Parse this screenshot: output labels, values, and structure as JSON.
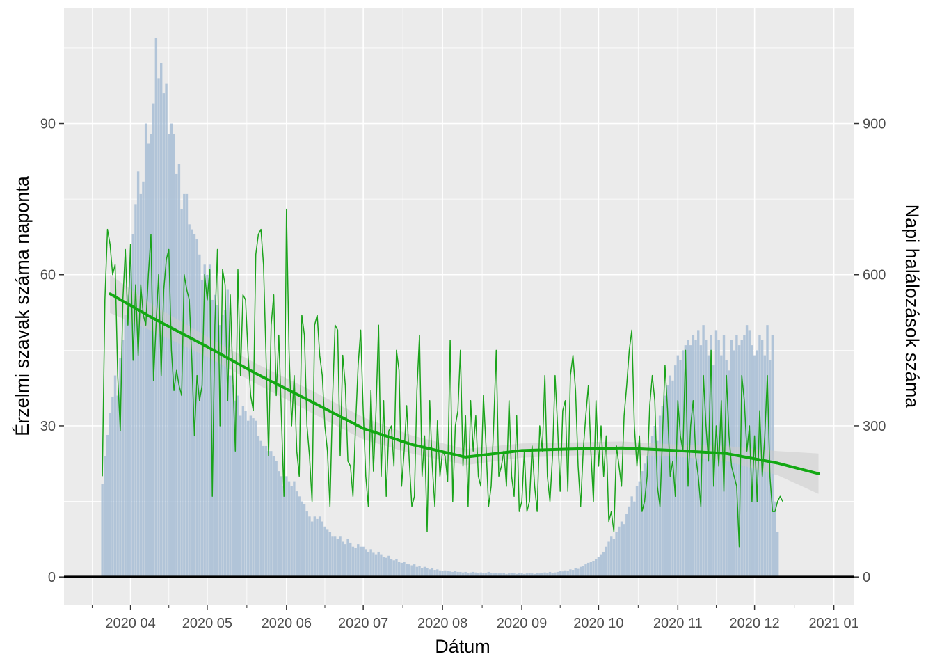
{
  "chart_data": {
    "type": "bar+line",
    "xlabel": "Dátum",
    "ylabel_left": "Érzelmi szavak száma naponta",
    "ylabel_right": "Napi halálozások száma",
    "x_tick_labels": [
      "2020 04",
      "2020 05",
      "2020 06",
      "2020 07",
      "2020 08",
      "2020 09",
      "2020 10",
      "2020 11",
      "2020 12",
      "2021 01"
    ],
    "x_tick_dates": [
      "2020-04-01",
      "2020-05-01",
      "2020-06-01",
      "2020-07-01",
      "2020-08-01",
      "2020-09-01",
      "2020-10-01",
      "2020-11-01",
      "2020-12-01",
      "2021-01-01"
    ],
    "xlim": [
      "2020-03-06",
      "2021-01-09"
    ],
    "y_left_ticks": [
      0,
      30,
      60,
      90
    ],
    "y_right_ticks": [
      0,
      300,
      600,
      900
    ],
    "ylim_left": [
      -5.5,
      113
    ],
    "ylim_right": [
      -55,
      1130
    ],
    "grid": true,
    "bar_color": "#a7bdd5",
    "line_color": "#1aa31a",
    "smooth_color": "#13a813",
    "ribbon_color": "#cccccc",
    "series": [
      {
        "name": "",
        "kind": "bar",
        "axis": "right",
        "start_date": "2020-03-21",
        "values": [
          185,
          240,
          282,
          326,
          358,
          400,
          360,
          434,
          470,
          520,
          560,
          620,
          680,
          740,
          805,
          760,
          785,
          900,
          860,
          880,
          940,
          1070,
          990,
          1020,
          960,
          980,
          880,
          900,
          880,
          800,
          820,
          730,
          760,
          760,
          700,
          690,
          680,
          670,
          640,
          590,
          620,
          600,
          620,
          550,
          560,
          540,
          500,
          520,
          530,
          570,
          400,
          380,
          350,
          360,
          320,
          340,
          330,
          310,
          320,
          315,
          310,
          280,
          270,
          260,
          260,
          250,
          250,
          240,
          230,
          210,
          200,
          180,
          200,
          190,
          180,
          190,
          170,
          160,
          150,
          145,
          130,
          120,
          110,
          120,
          115,
          120,
          110,
          100,
          95,
          90,
          80,
          80,
          75,
          80,
          70,
          65,
          75,
          68,
          60,
          58,
          65,
          60,
          60,
          55,
          50,
          55,
          48,
          45,
          50,
          45,
          40,
          38,
          42,
          35,
          33,
          35,
          30,
          28,
          30,
          26,
          25,
          23,
          25,
          20,
          22,
          18,
          20,
          17,
          15,
          17,
          14,
          15,
          13,
          12,
          13,
          12,
          11,
          10,
          12,
          10,
          10,
          9,
          10,
          8,
          9,
          10,
          9,
          8,
          9,
          8,
          8,
          10,
          8,
          7,
          8,
          7,
          7,
          8,
          6,
          7,
          8,
          7,
          6,
          8,
          7,
          6,
          7,
          8,
          7,
          6,
          8,
          7,
          8,
          9,
          8,
          10,
          8,
          9,
          10,
          12,
          11,
          13,
          12,
          15,
          14,
          18,
          16,
          20,
          22,
          25,
          28,
          30,
          32,
          35,
          40,
          45,
          50,
          60,
          70,
          80,
          75,
          90,
          100,
          110,
          105,
          125,
          140,
          160,
          150,
          180,
          190,
          210,
          225,
          240,
          260,
          280,
          300,
          270,
          320,
          340,
          360,
          380,
          400,
          390,
          420,
          440,
          430,
          450,
          460,
          470,
          460,
          480,
          470,
          490,
          460,
          500,
          470,
          440,
          480,
          420,
          490,
          470,
          440,
          480,
          430,
          410,
          470,
          450,
          480,
          460,
          470,
          480,
          500,
          490,
          460,
          440,
          450,
          480,
          470,
          440,
          500,
          430,
          480,
          150,
          90
        ]
      },
      {
        "name": "",
        "kind": "line",
        "axis": "left",
        "start_date": "2020-03-21",
        "values": [
          20,
          55,
          69,
          66,
          60,
          62,
          40,
          29,
          55,
          65,
          50,
          66,
          43,
          58,
          44,
          58,
          52,
          50,
          60,
          68,
          39,
          50,
          60,
          40,
          57,
          63,
          65,
          45,
          37,
          41,
          38,
          36,
          60,
          57,
          55,
          43,
          28,
          40,
          35,
          38,
          60,
          55,
          61,
          16,
          50,
          65,
          30,
          61,
          58,
          35,
          56,
          40,
          25,
          61,
          40,
          56,
          55,
          44,
          36,
          33,
          64,
          68,
          69,
          62,
          44,
          24,
          50,
          56,
          36,
          48,
          32,
          16,
          73,
          45,
          30,
          40,
          25,
          20,
          52,
          48,
          30,
          24,
          15,
          50,
          52,
          44,
          40,
          30,
          25,
          14,
          35,
          50,
          49,
          24,
          44,
          38,
          23,
          22,
          16,
          30,
          42,
          49,
          33,
          20,
          14,
          37,
          21,
          33,
          50,
          20,
          35,
          16,
          29,
          30,
          22,
          45,
          41,
          18,
          25,
          34,
          23,
          14,
          16,
          37,
          48,
          20,
          28,
          9,
          35,
          22,
          14,
          31,
          20,
          25,
          24,
          19,
          47,
          15,
          30,
          33,
          45,
          22,
          32,
          14,
          35,
          25,
          32,
          20,
          18,
          36,
          26,
          14,
          18,
          30,
          45,
          20,
          22,
          25,
          18,
          35,
          20,
          16,
          32,
          13,
          15,
          25,
          13,
          15,
          26,
          18,
          13,
          30,
          25,
          40,
          20,
          15,
          24,
          40,
          30,
          17,
          33,
          35,
          17,
          40,
          44,
          37,
          22,
          14,
          25,
          32,
          38,
          25,
          15,
          35,
          22,
          30,
          20,
          28,
          11,
          13,
          9,
          26,
          22,
          18,
          32,
          38,
          45,
          49,
          30,
          22,
          28,
          13,
          15,
          20,
          34,
          40,
          35,
          18,
          14,
          28,
          42,
          33,
          20,
          23,
          16,
          35,
          28,
          25,
          45,
          18,
          30,
          35,
          24,
          20,
          14,
          40,
          30,
          23,
          45,
          18,
          30,
          22,
          35,
          17,
          40,
          28,
          22,
          20,
          18,
          6,
          40,
          35,
          25,
          30,
          15,
          28,
          15,
          33,
          20,
          28,
          40,
          20,
          13,
          13,
          15,
          16,
          15
        ]
      }
    ],
    "smooth": {
      "name": "",
      "axis": "left",
      "dates": [
        "2020-03-24",
        "2020-04-10",
        "2020-05-01",
        "2020-05-20",
        "2020-06-10",
        "2020-07-01",
        "2020-07-20",
        "2020-08-10",
        "2020-09-01",
        "2020-09-20",
        "2020-10-10",
        "2020-10-31",
        "2020-11-20",
        "2020-12-10",
        "2020-12-26"
      ],
      "values": [
        56.2,
        51.3,
        45.7,
        40.4,
        35.0,
        29.5,
        26.3,
        23.8,
        25.1,
        25.4,
        25.6,
        25.1,
        24.5,
        22.6,
        20.5
      ],
      "ci_half_width": [
        3.8,
        2.6,
        2.0,
        2.0,
        2.2,
        2.2,
        1.8,
        1.6,
        1.4,
        1.3,
        1.3,
        1.2,
        1.5,
        2.4,
        4.0
      ]
    },
    "zero_line": 0
  }
}
